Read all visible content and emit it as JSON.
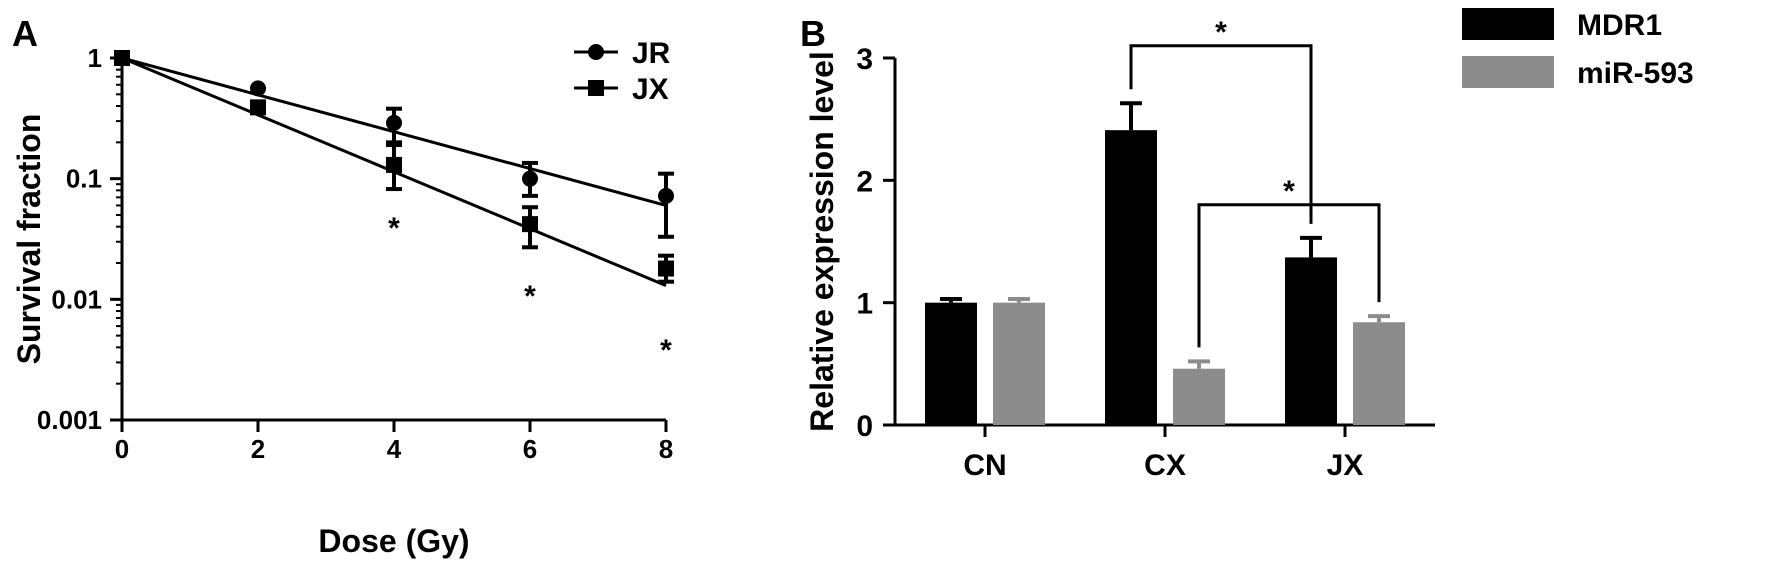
{
  "panels": {
    "a_label": "A",
    "b_label": "B"
  },
  "chart_data": [
    {
      "type": "line",
      "panel": "A",
      "title": "",
      "xlabel": "Dose (Gy)",
      "ylabel": "Survival fraction",
      "xscale": "linear",
      "yscale": "log",
      "xlim": [
        0,
        8
      ],
      "ylim": [
        0.001,
        1
      ],
      "x_ticks": [
        0,
        2,
        4,
        6,
        8
      ],
      "x_tick_labels": [
        "0",
        "2",
        "4",
        "6",
        "8"
      ],
      "y_ticks": [
        0.001,
        0.01,
        0.1,
        1
      ],
      "y_tick_labels": [
        "0.001",
        "0.01",
        "0.1",
        "1"
      ],
      "grid": false,
      "legend": "top-right",
      "series": [
        {
          "name": "JR",
          "marker": "circle",
          "x": [
            0,
            2,
            4,
            6,
            8
          ],
          "y": [
            1,
            0.56,
            0.29,
            0.1,
            0.072
          ],
          "err_low": [
            0,
            0,
            0.2,
            0.072,
            0.033
          ],
          "err_high": [
            0,
            0,
            0.38,
            0.135,
            0.11
          ],
          "fit": [
            [
              0,
              1
            ],
            [
              8,
              0.06
            ]
          ]
        },
        {
          "name": "JX",
          "marker": "square",
          "x": [
            0,
            2,
            4,
            6,
            8
          ],
          "y": [
            1,
            0.39,
            0.13,
            0.042,
            0.018
          ],
          "err_low": [
            0,
            0,
            0.082,
            0.027,
            0.014
          ],
          "err_high": [
            0,
            0,
            0.19,
            0.058,
            0.023
          ],
          "fit": [
            [
              0,
              1
            ],
            [
              8,
              0.013
            ]
          ]
        }
      ],
      "annotations": [
        {
          "text": "*",
          "x": 4,
          "y": 0.042
        },
        {
          "text": "*",
          "x": 6,
          "y": 0.0115
        },
        {
          "text": "*",
          "x": 8,
          "y": 0.0041
        }
      ]
    },
    {
      "type": "bar",
      "panel": "B",
      "title": "",
      "xlabel": "",
      "ylabel": "Relative expression level",
      "categories": [
        "CN",
        "CX",
        "JX"
      ],
      "ylim": [
        0,
        3
      ],
      "y_ticks": [
        0,
        1,
        2,
        3
      ],
      "y_tick_labels": [
        "0",
        "1",
        "2",
        "3"
      ],
      "grid": false,
      "legend": "top-right",
      "series": [
        {
          "name": "MDR1",
          "color": "#000000",
          "values": [
            1.0,
            2.41,
            1.37
          ],
          "errors": [
            0.03,
            0.22,
            0.16
          ]
        },
        {
          "name": "miR-593",
          "color": "#8c8c8c",
          "values": [
            1.0,
            0.46,
            0.84
          ],
          "errors": [
            0.03,
            0.06,
            0.05
          ]
        }
      ],
      "significance": [
        {
          "text": "*",
          "from": "CX|MDR1",
          "to": "JX|MDR1",
          "y": 3.1
        },
        {
          "text": "*",
          "from": "CX|miR-593",
          "to": "JX|miR-593",
          "y": 1.8
        }
      ]
    }
  ]
}
